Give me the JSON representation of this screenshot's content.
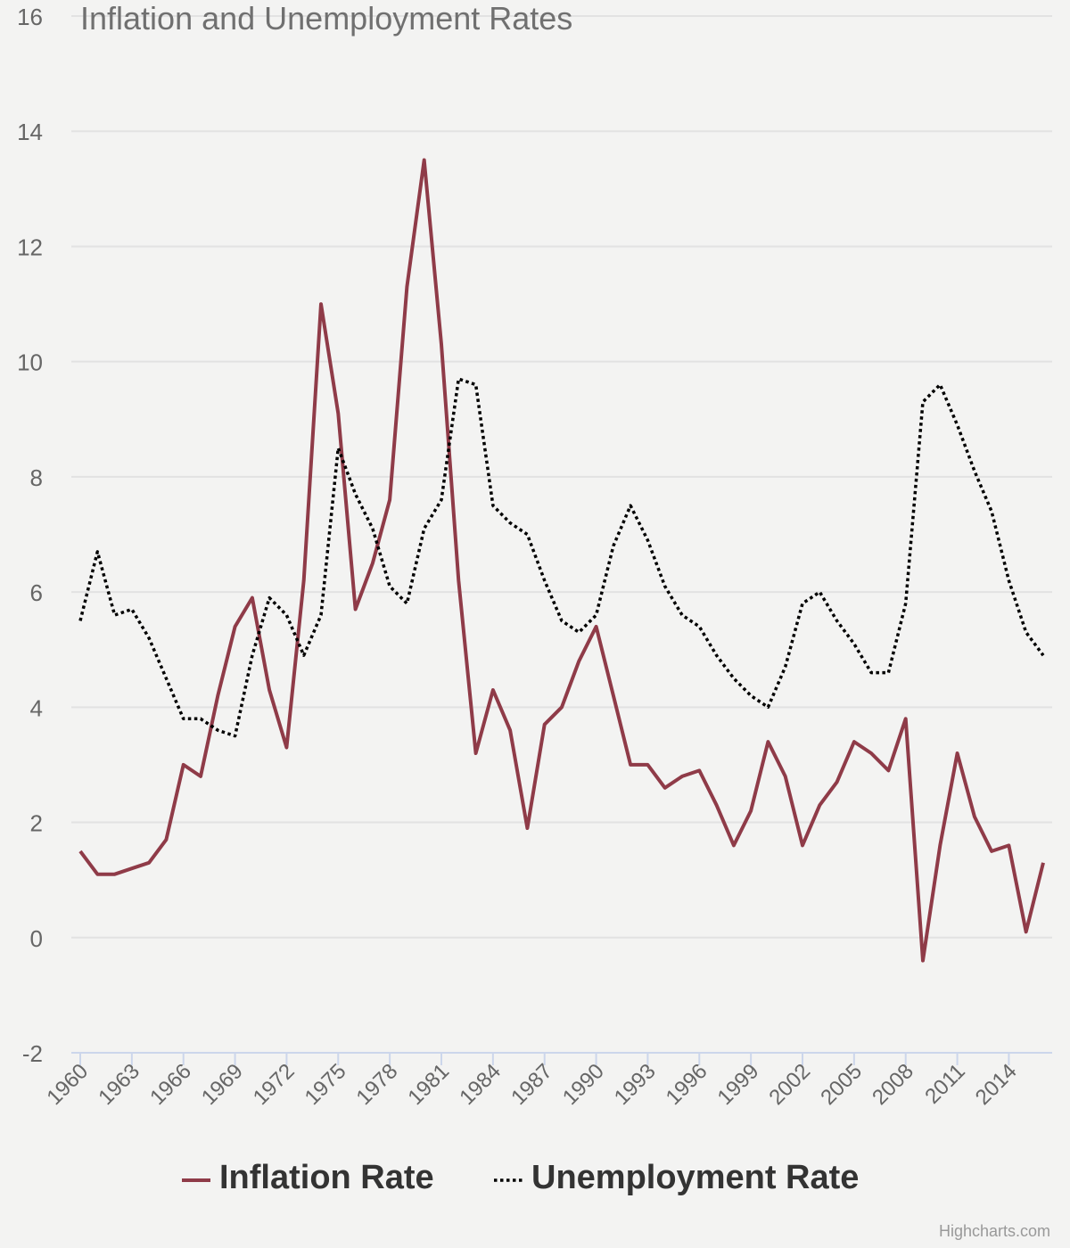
{
  "chart_data": {
    "type": "line",
    "title": "Inflation and Unemployment Rates",
    "xlabel": "",
    "ylabel": "",
    "ylim": [
      -2,
      16
    ],
    "yticks": [
      -2,
      0,
      2,
      4,
      6,
      8,
      10,
      12,
      14,
      16
    ],
    "grid": true,
    "legend": "bottom",
    "x": [
      1960,
      1961,
      1962,
      1963,
      1964,
      1965,
      1966,
      1967,
      1968,
      1969,
      1970,
      1971,
      1972,
      1973,
      1974,
      1975,
      1976,
      1977,
      1978,
      1979,
      1980,
      1981,
      1982,
      1983,
      1984,
      1985,
      1986,
      1987,
      1988,
      1989,
      1990,
      1991,
      1992,
      1993,
      1994,
      1995,
      1996,
      1997,
      1998,
      1999,
      2000,
      2001,
      2002,
      2003,
      2004,
      2005,
      2006,
      2007,
      2008,
      2009,
      2010,
      2011,
      2012,
      2013,
      2014,
      2015,
      2016
    ],
    "xtick_labels": [
      "1960",
      "1963",
      "1966",
      "1969",
      "1972",
      "1975",
      "1978",
      "1981",
      "1984",
      "1987",
      "1990",
      "1993",
      "1996",
      "1999",
      "2002",
      "2005",
      "2008",
      "2011",
      "2014"
    ],
    "series": [
      {
        "name": "Inflation Rate",
        "color": "#8f3b48",
        "dash": "solid",
        "values": [
          1.5,
          1.1,
          1.1,
          1.2,
          1.3,
          1.7,
          3.0,
          2.8,
          4.2,
          5.4,
          5.9,
          4.3,
          3.3,
          6.2,
          11.0,
          9.1,
          5.7,
          6.5,
          7.6,
          11.3,
          13.5,
          10.3,
          6.2,
          3.2,
          4.3,
          3.6,
          1.9,
          3.7,
          4.0,
          4.8,
          5.4,
          4.2,
          3.0,
          3.0,
          2.6,
          2.8,
          2.9,
          2.3,
          1.6,
          2.2,
          3.4,
          2.8,
          1.6,
          2.3,
          2.7,
          3.4,
          3.2,
          2.9,
          3.8,
          -0.4,
          1.6,
          3.2,
          2.1,
          1.5,
          1.6,
          0.1,
          1.3
        ]
      },
      {
        "name": "Unemployment Rate",
        "color": "#000000",
        "dash": "dotted",
        "values": [
          5.5,
          6.7,
          5.6,
          5.7,
          5.2,
          4.5,
          3.8,
          3.8,
          3.6,
          3.5,
          4.9,
          5.9,
          5.6,
          4.9,
          5.6,
          8.5,
          7.7,
          7.1,
          6.1,
          5.8,
          7.1,
          7.6,
          9.7,
          9.6,
          7.5,
          7.2,
          7.0,
          6.2,
          5.5,
          5.3,
          5.6,
          6.8,
          7.5,
          6.9,
          6.1,
          5.6,
          5.4,
          4.9,
          4.5,
          4.2,
          4.0,
          4.7,
          5.8,
          6.0,
          5.5,
          5.1,
          4.6,
          4.6,
          5.8,
          9.3,
          9.6,
          8.9,
          8.1,
          7.4,
          6.2,
          5.3,
          4.9
        ]
      }
    ]
  },
  "credits": "Highcharts.com"
}
